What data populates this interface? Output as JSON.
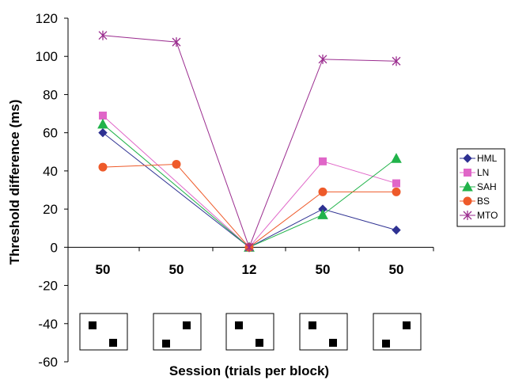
{
  "chart_data": {
    "type": "line",
    "title": "",
    "xlabel": "Session (trials per block)",
    "ylabel": "Threshold difference (ms)",
    "ylim": [
      -60,
      120
    ],
    "yticks": [
      -60,
      -40,
      -20,
      0,
      20,
      40,
      60,
      80,
      100,
      120
    ],
    "grid": false,
    "legend_position": "right",
    "categories": [
      "50",
      "50",
      "12",
      "50",
      "50"
    ],
    "stimulus_icons": [
      "two-squares-left-high",
      "two-squares-right-high",
      "two-squares-left-high",
      "two-squares-left-high",
      "two-squares-right-high"
    ],
    "series": [
      {
        "name": "HML",
        "color": "#2e3192",
        "marker": "diamond",
        "values": [
          60,
          null,
          0,
          20,
          9
        ]
      },
      {
        "name": "LN",
        "color": "#e066c8",
        "marker": "square",
        "values": [
          69,
          null,
          0,
          45,
          33.5
        ]
      },
      {
        "name": "SAH",
        "color": "#21b34a",
        "marker": "triangle",
        "values": [
          64.5,
          null,
          0,
          17,
          46.5
        ]
      },
      {
        "name": "BS",
        "color": "#ee5a2a",
        "marker": "circle",
        "values": [
          42,
          43.5,
          0,
          29,
          29
        ]
      },
      {
        "name": "MTO",
        "color": "#9b2d8f",
        "marker": "star",
        "values": [
          111,
          107.5,
          0,
          98.5,
          97.5
        ]
      }
    ]
  }
}
